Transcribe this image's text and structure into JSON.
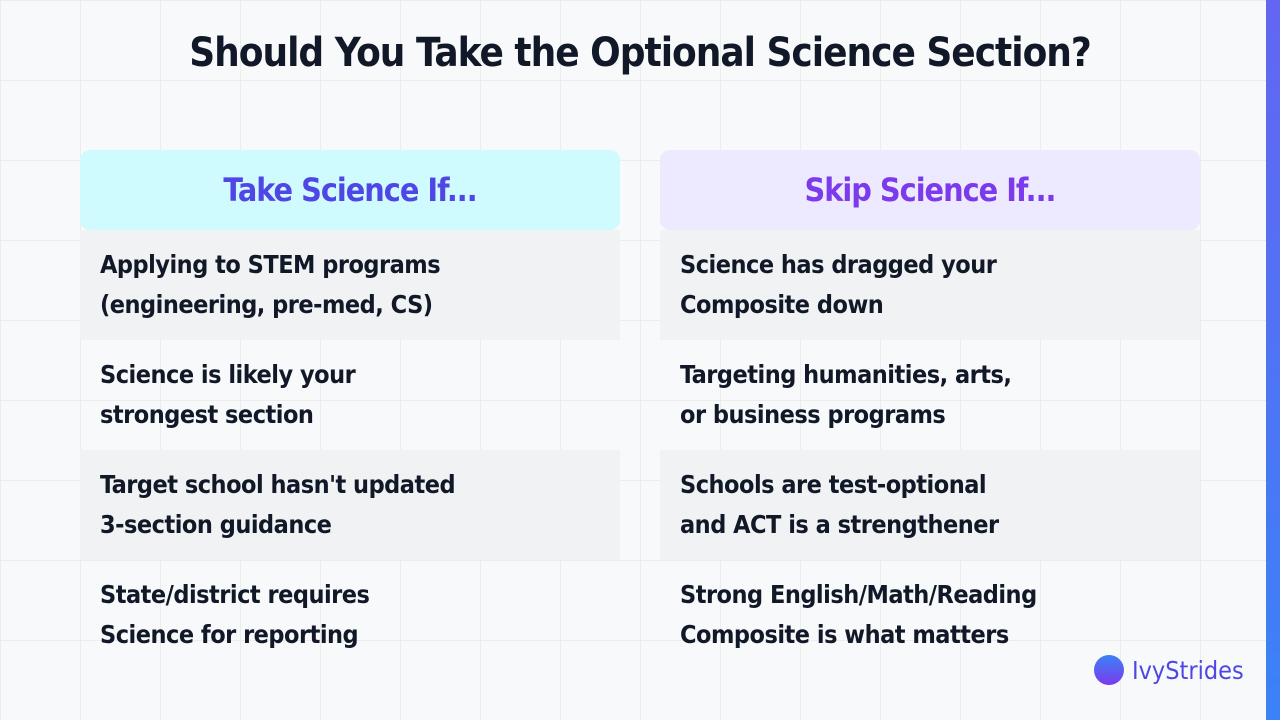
{
  "title": "Should You Take the Optional Science Section?",
  "columns": [
    {
      "heading": "Take Science If...",
      "items": [
        [
          "Applying to STEM programs",
          "(engineering, pre-med, CS)"
        ],
        [
          "Science is likely your",
          "strongest section"
        ],
        [
          "Target school hasn't updated",
          "3-section guidance"
        ],
        [
          "State/district requires",
          "Science for reporting"
        ]
      ]
    },
    {
      "heading": "Skip Science If...",
      "items": [
        [
          "Science has dragged your",
          "Composite down"
        ],
        [
          "Targeting humanities, arts,",
          "or business programs"
        ],
        [
          "Schools are test-optional",
          "and ACT is a strengthener"
        ],
        [
          "Strong English/Math/Reading",
          "Composite is what matters"
        ]
      ]
    }
  ],
  "brand": "IvyStrides"
}
